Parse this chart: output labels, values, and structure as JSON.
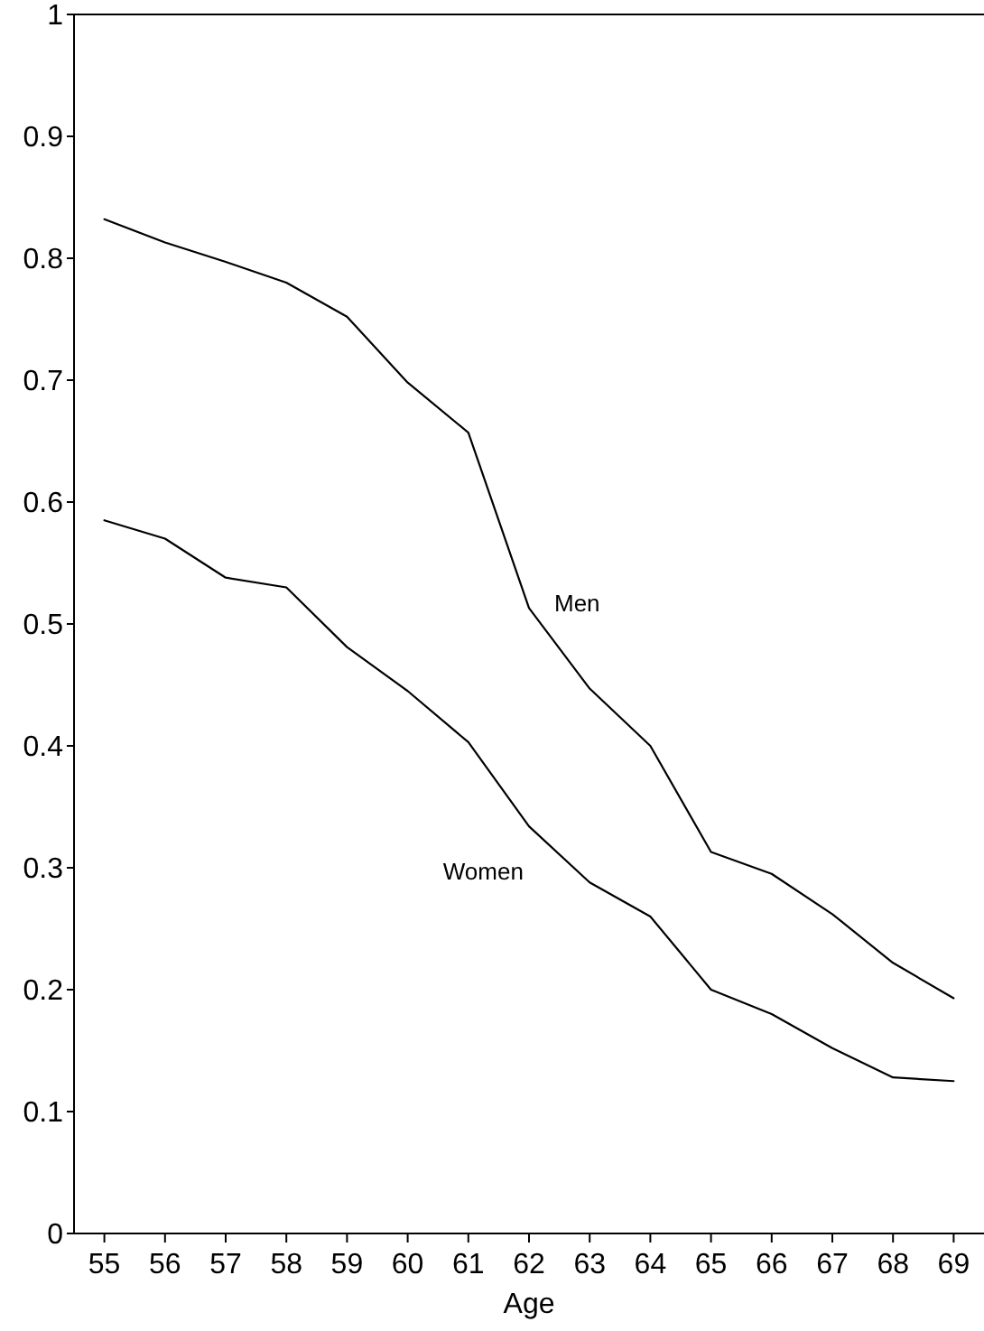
{
  "chart_data": {
    "type": "line",
    "xlabel": "Age",
    "x": [
      55,
      56,
      57,
      58,
      59,
      60,
      61,
      62,
      63,
      64,
      65,
      66,
      67,
      68,
      69
    ],
    "xlim": [
      54.5,
      69.5
    ],
    "xticks": [
      55,
      56,
      57,
      58,
      59,
      60,
      61,
      62,
      63,
      64,
      65,
      66,
      67,
      68,
      69
    ],
    "ylim": [
      0,
      1
    ],
    "yticks": [
      0,
      0.1,
      0.2,
      0.3,
      0.4,
      0.5,
      0.6,
      0.7,
      0.8,
      0.9,
      1
    ],
    "grid": false,
    "marker": "none",
    "line_style": "solid",
    "series": [
      {
        "name": "Men",
        "color": "#000000",
        "values": [
          0.832,
          0.813,
          0.797,
          0.78,
          0.752,
          0.698,
          0.657,
          0.513,
          0.447,
          0.4,
          0.313,
          0.295,
          0.262,
          0.222,
          0.193
        ]
      },
      {
        "name": "Women",
        "color": "#000000",
        "values": [
          0.585,
          0.57,
          0.538,
          0.53,
          0.481,
          0.445,
          0.403,
          0.334,
          0.288,
          0.26,
          0.2,
          0.18,
          0.152,
          0.128,
          0.125
        ]
      }
    ]
  }
}
